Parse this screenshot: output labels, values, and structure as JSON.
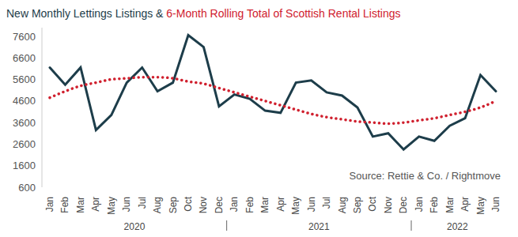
{
  "chart_data": {
    "type": "line",
    "title": "New Monthly Lettings Listings & 6-Month Rolling Total of Scottish Rental Listings",
    "source": "Source: Rettie & Co. / Rightmove",
    "categories": [
      "Jan",
      "Feb",
      "Mar",
      "Apr",
      "May",
      "Jun",
      "Jul",
      "Aug",
      "Sep",
      "Oct",
      "Nov",
      "Dec",
      "Jan",
      "Feb",
      "Mar",
      "Apr",
      "May",
      "Jun",
      "Jul",
      "Aug",
      "Sep",
      "Oct",
      "Nov",
      "Dec",
      "Jan",
      "Feb",
      "Mar",
      "Apr",
      "May",
      "Jun"
    ],
    "groups": [
      {
        "label": "2020",
        "count": 12
      },
      {
        "label": "2021",
        "count": 12
      },
      {
        "label": "2022",
        "count": 6
      }
    ],
    "series": [
      {
        "name": "New Monthly Lettings Listings",
        "color": "#1d3d4a",
        "line_style": "solid",
        "marker": "none",
        "values": [
          6150,
          5350,
          6150,
          3250,
          3950,
          5450,
          6150,
          5050,
          5450,
          7650,
          7100,
          4350,
          4900,
          4700,
          4150,
          4050,
          5450,
          5550,
          5000,
          4850,
          4300,
          2950,
          3100,
          2350,
          2950,
          2750,
          3450,
          3800,
          5800,
          5050
        ]
      },
      {
        "name": "6-Month Rolling Total of Scottish Rental Listings",
        "color": "#d0202e",
        "line_style": "dotted",
        "marker": "none",
        "values": [
          4750,
          5050,
          5300,
          5450,
          5600,
          5650,
          5700,
          5700,
          5650,
          5500,
          5400,
          5200,
          5000,
          4800,
          4600,
          4400,
          4200,
          4000,
          3850,
          3750,
          3650,
          3600,
          3550,
          3600,
          3700,
          3800,
          3950,
          4100,
          4300,
          4600
        ]
      }
    ],
    "ylim": [
      600,
      8000
    ],
    "yticks": [
      600,
      1600,
      2600,
      3600,
      4600,
      5600,
      6600,
      7600
    ],
    "grid": false
  }
}
